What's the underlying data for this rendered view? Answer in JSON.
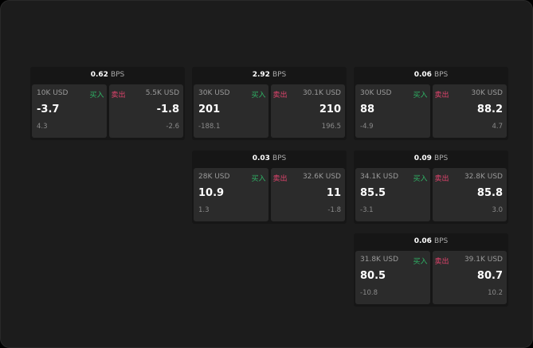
{
  "unit_label": "BPS",
  "buy_label": "买入",
  "sell_label": "卖出",
  "colors": {
    "buy": "#2fb365",
    "sell": "#e0436c",
    "background": "#1c1c1c"
  },
  "widgets": [
    {
      "spread": "0.62",
      "bid": {
        "size": "10K USD",
        "price": "-3.7",
        "delta": "4.3"
      },
      "ask": {
        "size": "5.5K USD",
        "price": "-1.8",
        "delta": "-2.6"
      }
    },
    {
      "spread": "2.92",
      "bid": {
        "size": "30K USD",
        "price": "201",
        "delta": "-188.1"
      },
      "ask": {
        "size": "30.1K USD",
        "price": "210",
        "delta": "196.5"
      }
    },
    {
      "spread": "0.06",
      "bid": {
        "size": "30K USD",
        "price": "88",
        "delta": "-4.9"
      },
      "ask": {
        "size": "30K USD",
        "price": "88.2",
        "delta": "4.7"
      }
    },
    {
      "spread": "0.03",
      "bid": {
        "size": "28K USD",
        "price": "10.9",
        "delta": "1.3"
      },
      "ask": {
        "size": "32.6K USD",
        "price": "11",
        "delta": "-1.8"
      }
    },
    {
      "spread": "0.09",
      "bid": {
        "size": "34.1K USD",
        "price": "85.5",
        "delta": "-3.1"
      },
      "ask": {
        "size": "32.8K USD",
        "price": "85.8",
        "delta": "3.0"
      }
    },
    {
      "spread": "0.06",
      "bid": {
        "size": "31.8K USD",
        "price": "80.5",
        "delta": "-10.8"
      },
      "ask": {
        "size": "39.1K USD",
        "price": "80.7",
        "delta": "10.2"
      }
    }
  ]
}
